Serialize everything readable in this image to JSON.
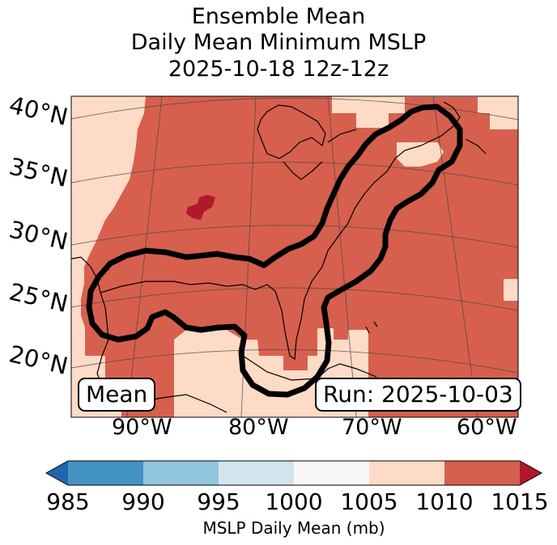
{
  "title": {
    "line1": "Ensemble Mean",
    "line2": "Daily Mean Minimum MSLP",
    "line3": "2025-10-18 12z-12z"
  },
  "map": {
    "lat_labels": [
      "40°N",
      "35°N",
      "30°N",
      "25°N",
      "20°N"
    ],
    "lon_labels": [
      "90°W",
      "80°W",
      "70°W",
      "60°W"
    ],
    "mean_label": "Mean",
    "run_label": "Run: 2025-10-03",
    "fill_colors": {
      "high": "#d6604d",
      "mid": "#fddbc7",
      "extreme": "#b2182b"
    },
    "outline_color": "#000000"
  },
  "colorbar": {
    "ticks": [
      "985",
      "990",
      "995",
      "1000",
      "1005",
      "1010",
      "1015"
    ],
    "label": "MSLP Daily Mean (mb)",
    "colors": [
      "#2166ac",
      "#4393c3",
      "#92c5de",
      "#d1e5f0",
      "#f7f7f7",
      "#fddbc7",
      "#d6604d",
      "#b2182b"
    ]
  }
}
